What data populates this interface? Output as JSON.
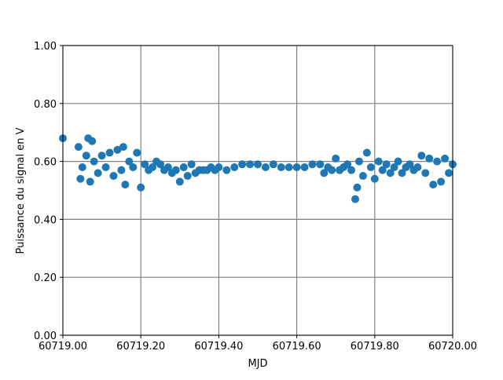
{
  "chart_data": {
    "type": "scatter",
    "xlabel": "MJD",
    "ylabel": "Puissance du signal en V",
    "color": "#1f77b4",
    "grid": true,
    "xlim": [
      60719.0,
      60720.0
    ],
    "xticks": [
      {
        "value": 60719.0,
        "label": "60719.00"
      },
      {
        "value": 60719.2,
        "label": "60719.20"
      },
      {
        "value": 60719.4,
        "label": "60719.40"
      },
      {
        "value": 60719.6,
        "label": "60719.60"
      },
      {
        "value": 60719.8,
        "label": "60719.80"
      },
      {
        "value": 60720.0,
        "label": "60720.00"
      }
    ],
    "ylim": [
      0,
      1
    ],
    "yticks": [
      {
        "value": 0,
        "label": "0.00"
      },
      {
        "value": 0.2,
        "label": "0.20"
      },
      {
        "value": 0.4,
        "label": "0.40"
      },
      {
        "value": 0.6,
        "label": "0.60"
      },
      {
        "value": 0.8,
        "label": "0.80"
      },
      {
        "value": 1,
        "label": "1.00"
      }
    ],
    "x": [
      60719.0,
      60719.04,
      60719.045,
      60719.05,
      60719.06,
      60719.065,
      60719.07,
      60719.075,
      60719.08,
      60719.09,
      60719.1,
      60719.11,
      60719.12,
      60719.13,
      60719.14,
      60719.15,
      60719.155,
      60719.16,
      60719.17,
      60719.18,
      60719.19,
      60719.2,
      60719.21,
      60719.22,
      60719.23,
      60719.24,
      60719.25,
      60719.26,
      60719.27,
      60719.28,
      60719.29,
      60719.3,
      60719.31,
      60719.32,
      60719.33,
      60719.34,
      60719.35,
      60719.36,
      60719.37,
      60719.38,
      60719.39,
      60719.4,
      60719.42,
      60719.44,
      60719.46,
      60719.48,
      60719.5,
      60719.52,
      60719.54,
      60719.56,
      60719.58,
      60719.6,
      60719.62,
      60719.64,
      60719.66,
      60719.67,
      60719.68,
      60719.69,
      60719.7,
      60719.71,
      60719.72,
      60719.73,
      60719.74,
      60719.75,
      60719.755,
      60719.76,
      60719.77,
      60719.78,
      60719.79,
      60719.8,
      60719.81,
      60719.82,
      60719.83,
      60719.84,
      60719.85,
      60719.86,
      60719.87,
      60719.88,
      60719.89,
      60719.9,
      60719.91,
      60719.92,
      60719.93,
      60719.94,
      60719.95,
      60719.96,
      60719.97,
      60719.98,
      60719.99,
      60720.0
    ],
    "values": [
      0.68,
      0.65,
      0.54,
      0.58,
      0.62,
      0.68,
      0.53,
      0.67,
      0.6,
      0.56,
      0.62,
      0.58,
      0.63,
      0.55,
      0.64,
      0.57,
      0.65,
      0.52,
      0.6,
      0.58,
      0.63,
      0.51,
      0.59,
      0.57,
      0.58,
      0.6,
      0.59,
      0.57,
      0.58,
      0.56,
      0.57,
      0.53,
      0.58,
      0.55,
      0.59,
      0.56,
      0.57,
      0.57,
      0.57,
      0.58,
      0.57,
      0.58,
      0.57,
      0.58,
      0.59,
      0.59,
      0.59,
      0.58,
      0.59,
      0.58,
      0.58,
      0.58,
      0.58,
      0.59,
      0.59,
      0.56,
      0.58,
      0.57,
      0.61,
      0.57,
      0.58,
      0.59,
      0.57,
      0.47,
      0.51,
      0.6,
      0.55,
      0.63,
      0.58,
      0.54,
      0.6,
      0.57,
      0.59,
      0.56,
      0.58,
      0.6,
      0.56,
      0.58,
      0.59,
      0.57,
      0.58,
      0.62,
      0.56,
      0.61,
      0.52,
      0.6,
      0.53,
      0.61,
      0.56,
      0.59
    ]
  }
}
